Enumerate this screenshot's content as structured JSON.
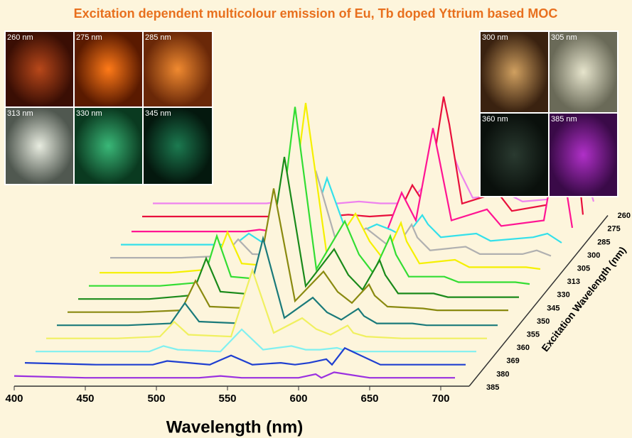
{
  "chart_data": {
    "type": "waterfall",
    "title": "Excitation dependent multicolour emission of Eu, Tb doped Yttrium based MOC",
    "xlabel": "Wavelength (nm)",
    "zlabel": "Excitation Wavelength (nm)",
    "x": [
      400,
      450,
      480,
      490,
      500,
      530,
      545,
      560,
      580,
      590,
      600,
      612,
      616,
      625,
      650,
      660,
      690,
      700,
      710
    ],
    "xlim": [
      400,
      720
    ],
    "xticks": [
      400,
      450,
      500,
      550,
      600,
      650,
      700
    ],
    "series": [
      {
        "name": "260",
        "color": "#ee82ee",
        "values": [
          5,
          5,
          5,
          6,
          5,
          5,
          6,
          5,
          5,
          14,
          8,
          30,
          22,
          8,
          10,
          6,
          8,
          32,
          6
        ]
      },
      {
        "name": "275",
        "color": "#e8103c",
        "values": [
          5,
          5,
          5,
          5,
          5,
          5,
          6,
          5,
          6,
          22,
          10,
          70,
          55,
          12,
          18,
          8,
          12,
          80,
          6
        ]
      },
      {
        "name": "285",
        "color": "#ff1493",
        "values": [
          4,
          4,
          4,
          5,
          4,
          4,
          6,
          4,
          5,
          25,
          10,
          60,
          45,
          10,
          16,
          7,
          10,
          55,
          6
        ]
      },
      {
        "name": "300",
        "color": "#33e0ea",
        "values": [
          4,
          4,
          4,
          10,
          5,
          4,
          40,
          8,
          15,
          12,
          8,
          20,
          15,
          8,
          10,
          6,
          8,
          10,
          5
        ]
      },
      {
        "name": "305",
        "color": "#b0b0b0",
        "values": [
          4,
          4,
          5,
          14,
          6,
          5,
          50,
          10,
          20,
          14,
          8,
          22,
          15,
          8,
          10,
          6,
          6,
          8,
          5
        ]
      },
      {
        "name": "313",
        "color": "#f5f000",
        "values": [
          3,
          3,
          5,
          25,
          8,
          6,
          95,
          12,
          35,
          20,
          10,
          30,
          20,
          8,
          10,
          6,
          6,
          6,
          5
        ]
      },
      {
        "name": "330",
        "color": "#33dd33",
        "values": [
          3,
          3,
          5,
          30,
          8,
          6,
          100,
          12,
          38,
          20,
          10,
          30,
          20,
          8,
          8,
          5,
          5,
          5,
          4
        ]
      },
      {
        "name": "345",
        "color": "#1a8a1a",
        "values": [
          3,
          3,
          5,
          25,
          7,
          5,
          80,
          10,
          30,
          16,
          8,
          24,
          16,
          6,
          6,
          4,
          4,
          4,
          4
        ]
      },
      {
        "name": "350",
        "color": "#8a8a10",
        "values": [
          3,
          3,
          4,
          20,
          6,
          5,
          70,
          9,
          25,
          14,
          8,
          18,
          12,
          6,
          5,
          4,
          4,
          4,
          4
        ]
      },
      {
        "name": "355",
        "color": "#1a7a7a",
        "values": [
          3,
          3,
          4,
          15,
          5,
          4,
          50,
          7,
          18,
          10,
          6,
          12,
          8,
          4,
          4,
          3,
          3,
          3,
          3
        ]
      },
      {
        "name": "360",
        "color": "#f0f060",
        "values": [
          3,
          3,
          4,
          12,
          5,
          4,
          40,
          6,
          14,
          8,
          5,
          10,
          6,
          4,
          3,
          3,
          3,
          3,
          3
        ]
      },
      {
        "name": "369",
        "color": "#80f0f0",
        "values": [
          3,
          3,
          3,
          6,
          4,
          3,
          15,
          4,
          6,
          4,
          4,
          5,
          4,
          3,
          3,
          3,
          3,
          3,
          3
        ]
      },
      {
        "name": "380",
        "color": "#1f3fd0",
        "values": [
          4,
          3,
          3,
          3,
          5,
          3,
          8,
          3,
          4,
          3,
          4,
          6,
          3,
          12,
          3,
          3,
          3,
          3,
          3
        ]
      },
      {
        "name": "385",
        "color": "#9a30e0",
        "values": [
          4,
          3,
          3,
          3,
          3,
          3,
          4,
          3,
          3,
          3,
          3,
          5,
          3,
          6,
          3,
          3,
          3,
          3,
          3
        ]
      }
    ]
  },
  "insets": [
    {
      "label": "260 nm"
    },
    {
      "label": "275 nm"
    },
    {
      "label": "285 nm"
    },
    {
      "label": "313 nm"
    },
    {
      "label": "330 nm"
    },
    {
      "label": "345 nm"
    },
    {
      "label": "300 nm"
    },
    {
      "label": "305 nm"
    },
    {
      "label": "360 nm"
    },
    {
      "label": "385 nm"
    }
  ]
}
